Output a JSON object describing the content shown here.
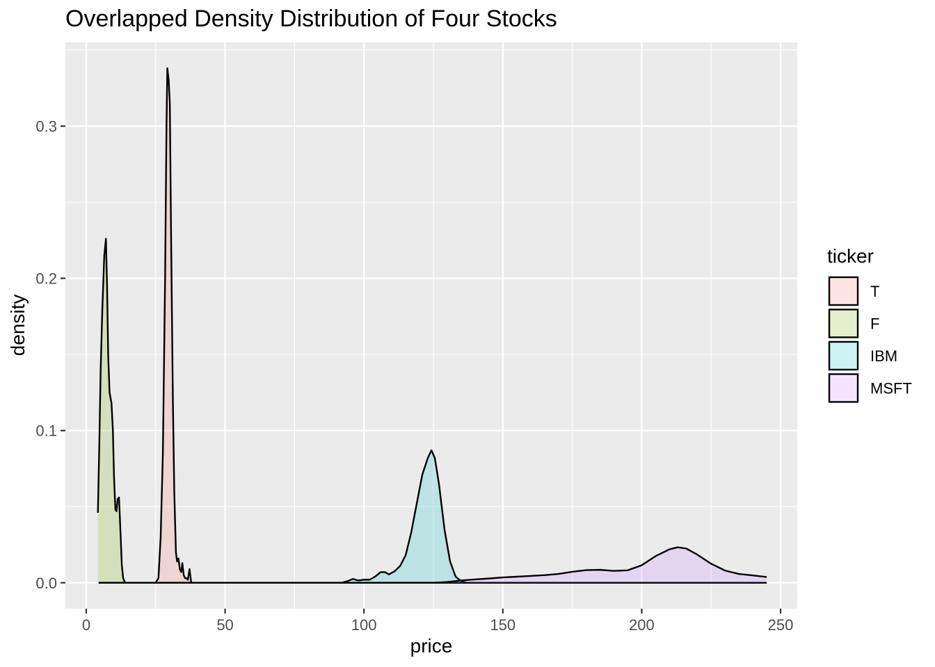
{
  "chart_data": {
    "type": "area",
    "title": "Overlapped Density Distribution of Four Stocks",
    "xlabel": "price",
    "ylabel": "density",
    "xlim": [
      -7.5,
      256
    ],
    "ylim": [
      -0.017,
      0.355
    ],
    "x_ticks": [
      0,
      50,
      100,
      150,
      200,
      250
    ],
    "x_tick_labels": [
      "0",
      "50",
      "100",
      "150",
      "200",
      "250"
    ],
    "y_ticks": [
      0.0,
      0.1,
      0.2,
      0.3
    ],
    "y_tick_labels": [
      "0.0",
      "0.1",
      "0.2",
      "0.3"
    ],
    "grid": true,
    "legend": {
      "title": "ticker",
      "position": "right"
    },
    "series": [
      {
        "name": "T",
        "color": "#F8766D",
        "points": [
          [
            4.5,
            0
          ],
          [
            25,
            0
          ],
          [
            26,
            0.003
          ],
          [
            26.8,
            0.03
          ],
          [
            27.6,
            0.085
          ],
          [
            28.4,
            0.2
          ],
          [
            28.9,
            0.3
          ],
          [
            29.2,
            0.338
          ],
          [
            29.7,
            0.33
          ],
          [
            30.1,
            0.315
          ],
          [
            30.6,
            0.22
          ],
          [
            31.2,
            0.12
          ],
          [
            31.7,
            0.06
          ],
          [
            32.3,
            0.02
          ],
          [
            32.7,
            0.014
          ],
          [
            33.2,
            0.016
          ],
          [
            33.7,
            0.009
          ],
          [
            34.2,
            0.007
          ],
          [
            34.6,
            0.013
          ],
          [
            35.1,
            0.005
          ],
          [
            35.6,
            0.003
          ],
          [
            36.1,
            0.003
          ],
          [
            36.6,
            0.002
          ],
          [
            37.2,
            0.009
          ],
          [
            37.8,
            0
          ],
          [
            245,
            0
          ]
        ]
      },
      {
        "name": "F",
        "color": "#7CAE00",
        "points": [
          [
            4.2,
            0.046
          ],
          [
            4.7,
            0.09
          ],
          [
            5.2,
            0.14
          ],
          [
            5.8,
            0.18
          ],
          [
            6.5,
            0.215
          ],
          [
            7.1,
            0.226
          ],
          [
            7.5,
            0.195
          ],
          [
            7.9,
            0.15
          ],
          [
            8.4,
            0.125
          ],
          [
            9.1,
            0.118
          ],
          [
            9.6,
            0.1
          ],
          [
            10,
            0.07
          ],
          [
            10.5,
            0.048
          ],
          [
            10.9,
            0.047
          ],
          [
            11.3,
            0.055
          ],
          [
            11.8,
            0.056
          ],
          [
            12.3,
            0.035
          ],
          [
            12.8,
            0.012
          ],
          [
            13.3,
            0.003
          ],
          [
            14,
            0
          ],
          [
            245,
            0
          ]
        ]
      },
      {
        "name": "IBM",
        "color": "#00BFC4",
        "points": [
          [
            4.5,
            0
          ],
          [
            92,
            0
          ],
          [
            94,
            0.001
          ],
          [
            96,
            0.0025
          ],
          [
            98,
            0.0015
          ],
          [
            100,
            0.002
          ],
          [
            102,
            0.002
          ],
          [
            104,
            0.004
          ],
          [
            106,
            0.007
          ],
          [
            107.5,
            0.007
          ],
          [
            109,
            0.0055
          ],
          [
            111,
            0.0075
          ],
          [
            113,
            0.011
          ],
          [
            115,
            0.018
          ],
          [
            117,
            0.033
          ],
          [
            119,
            0.052
          ],
          [
            121,
            0.071
          ],
          [
            123,
            0.082
          ],
          [
            124.3,
            0.087
          ],
          [
            125.5,
            0.082
          ],
          [
            127,
            0.065
          ],
          [
            129,
            0.035
          ],
          [
            131,
            0.014
          ],
          [
            133,
            0.004
          ],
          [
            135,
            0.001
          ],
          [
            137,
            0
          ],
          [
            245,
            0
          ]
        ]
      },
      {
        "name": "MSFT",
        "color": "#C77CFF",
        "points": [
          [
            4.5,
            0
          ],
          [
            125,
            0
          ],
          [
            130,
            0.0005
          ],
          [
            135,
            0.0015
          ],
          [
            140,
            0.0022
          ],
          [
            145,
            0.0028
          ],
          [
            150,
            0.0035
          ],
          [
            155,
            0.004
          ],
          [
            160,
            0.0045
          ],
          [
            165,
            0.005
          ],
          [
            170,
            0.0058
          ],
          [
            175,
            0.0072
          ],
          [
            180,
            0.0083
          ],
          [
            185,
            0.0085
          ],
          [
            190,
            0.0078
          ],
          [
            195,
            0.0082
          ],
          [
            200,
            0.0115
          ],
          [
            205,
            0.0175
          ],
          [
            210,
            0.022
          ],
          [
            213,
            0.0233
          ],
          [
            216,
            0.0225
          ],
          [
            220,
            0.0185
          ],
          [
            225,
            0.0125
          ],
          [
            230,
            0.008
          ],
          [
            235,
            0.0058
          ],
          [
            240,
            0.0048
          ],
          [
            245,
            0.0038
          ]
        ]
      }
    ]
  }
}
